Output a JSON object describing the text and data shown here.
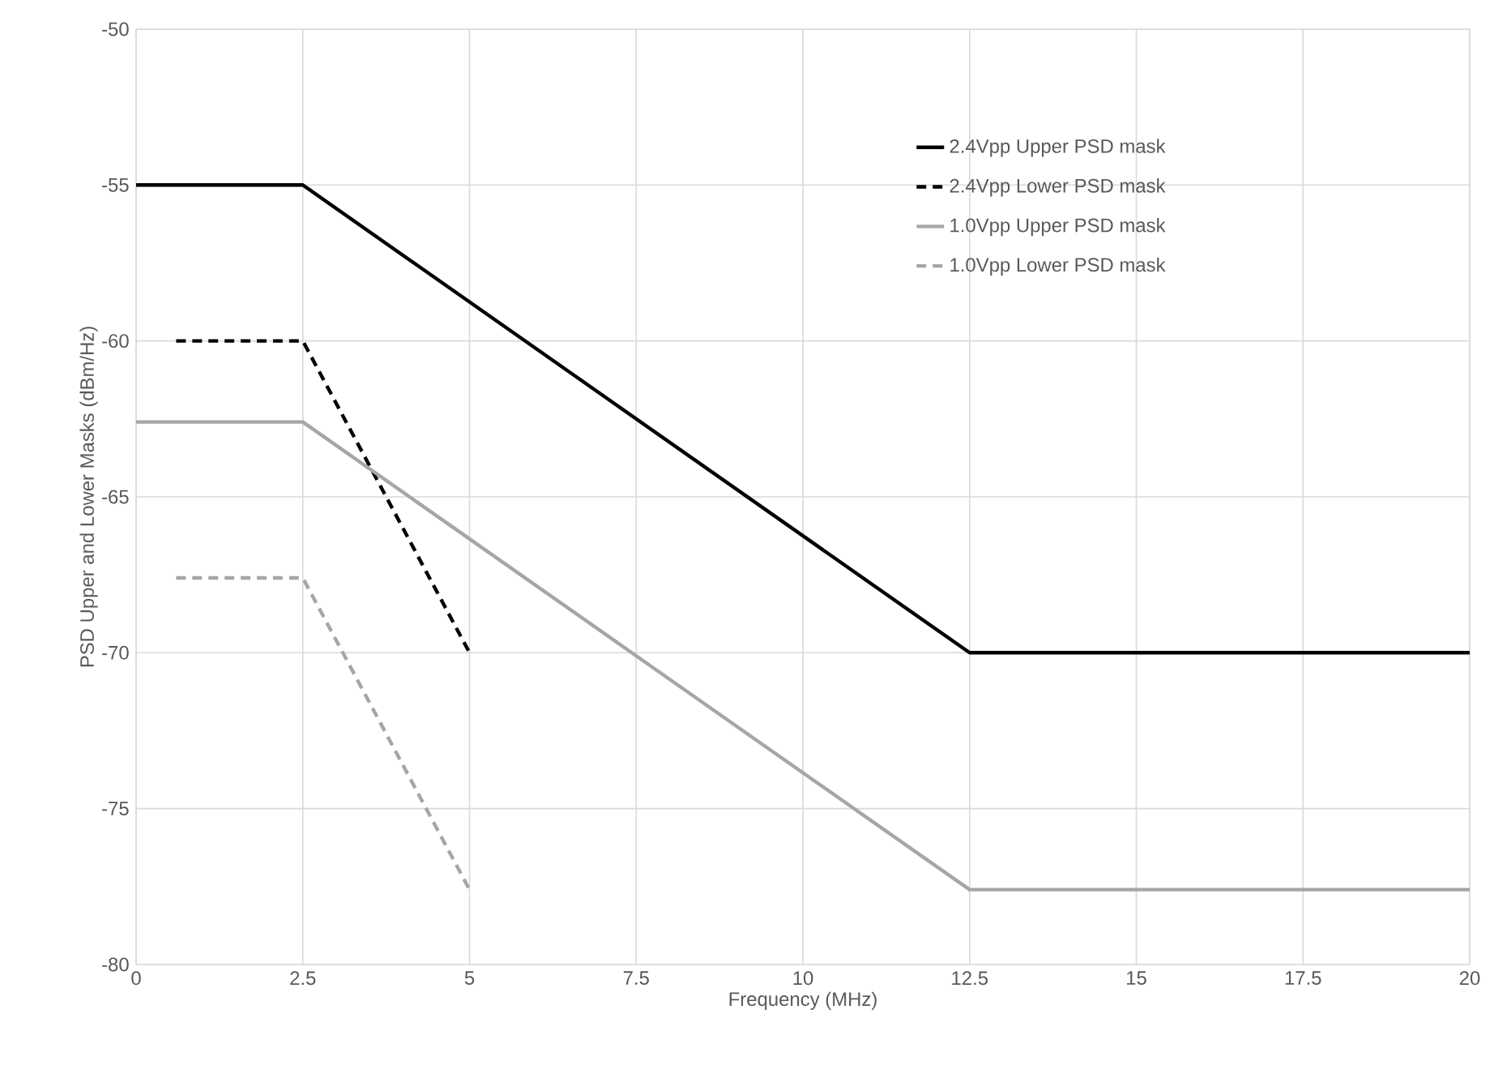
{
  "chart_data": {
    "type": "line",
    "xlabel": "Frequency (MHz)",
    "ylabel": "PSD Upper and Lower Masks (dBm/Hz)",
    "xlim": [
      0,
      20
    ],
    "ylim": [
      -80,
      -50
    ],
    "xticks": [
      0,
      2.5,
      5,
      7.5,
      10,
      12.5,
      15,
      17.5,
      20
    ],
    "yticks": [
      -80,
      -75,
      -70,
      -65,
      -60,
      -55,
      -50
    ],
    "grid": true,
    "legend": "top right",
    "marker": "none",
    "series": [
      {
        "name": "2.4Vpp Upper PSD mask",
        "color": "#000000",
        "line_style": "solid",
        "x": [
          0,
          2.5,
          12.5,
          20
        ],
        "values": [
          -55,
          -55,
          -70,
          -70
        ]
      },
      {
        "name": "2.4Vpp Lower PSD mask",
        "color": "#000000",
        "line_style": "dashed",
        "x": [
          0.6,
          2.5,
          5
        ],
        "values": [
          -60,
          -60,
          -70
        ]
      },
      {
        "name": "1.0Vpp Upper PSD mask",
        "color": "#a6a6a6",
        "line_style": "solid",
        "x": [
          0,
          2.5,
          12.5,
          20
        ],
        "values": [
          -62.6,
          -62.6,
          -77.6,
          -77.6
        ]
      },
      {
        "name": "1.0Vpp Lower PSD mask",
        "color": "#a6a6a6",
        "line_style": "dashed",
        "x": [
          0.6,
          2.5,
          5
        ],
        "values": [
          -67.6,
          -67.6,
          -77.6
        ]
      }
    ]
  }
}
